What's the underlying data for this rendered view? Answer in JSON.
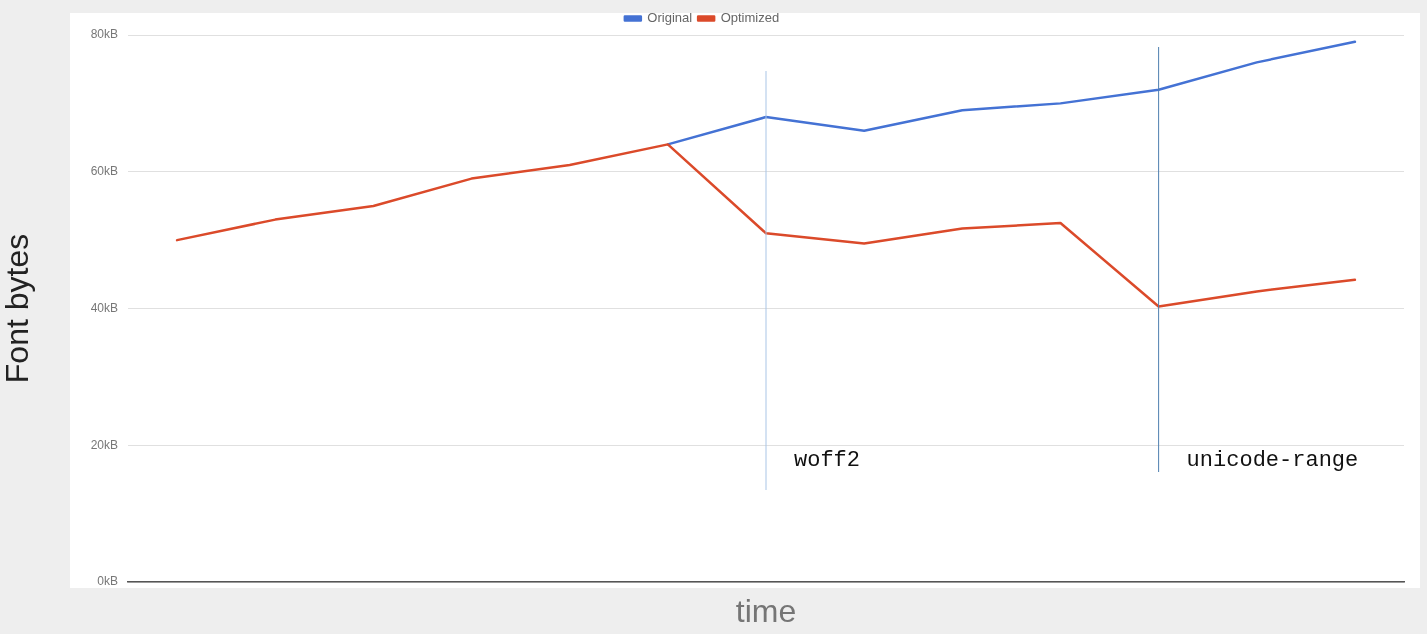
{
  "chart_data": {
    "type": "line",
    "xlabel": "time",
    "ylabel": "Font bytes",
    "categories": [
      null,
      null,
      null,
      null,
      null,
      null,
      null,
      null,
      null,
      null,
      null,
      null,
      null
    ],
    "series": [
      {
        "name": "Original",
        "color": "#4472d4",
        "values": [
          null,
          null,
          null,
          null,
          null,
          64,
          68,
          66,
          69,
          70,
          72,
          76,
          79
        ]
      },
      {
        "name": "Optimized",
        "color": "#db4a2a",
        "values": [
          50,
          53,
          55,
          59,
          61,
          64,
          51,
          49.5,
          51.7,
          52.5,
          40.3,
          42.5,
          44.2
        ]
      }
    ],
    "ylim": [
      0,
      80
    ],
    "yticks": [
      {
        "value": 0,
        "label": "0kB"
      },
      {
        "value": 20,
        "label": "20kB"
      },
      {
        "value": 40,
        "label": "40kB"
      },
      {
        "value": 60,
        "label": "60kB"
      },
      {
        "value": 80,
        "label": "80kB"
      }
    ],
    "grid": "y",
    "legend": "top",
    "marker": "none",
    "line_style": "solid",
    "annotations": [
      "woff2",
      "unicode-range"
    ]
  }
}
